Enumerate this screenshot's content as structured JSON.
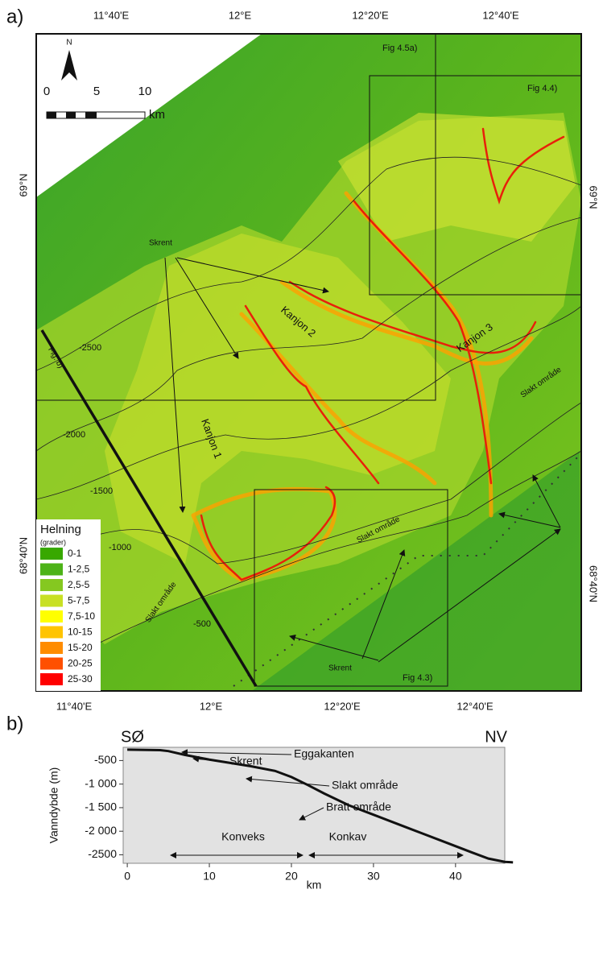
{
  "panel_labels": [
    "a)",
    "b)"
  ],
  "map": {
    "top_ticks": [
      "11°40'E",
      "12°E",
      "12°20'E",
      "12°40'E"
    ],
    "bottom_ticks": [
      "11°40'E",
      "12°E",
      "12°20'E",
      "12°40'E"
    ],
    "left_ticks": [
      "69°N",
      "68°40'N"
    ],
    "right_ticks": [
      "69°N",
      "68°40'N"
    ],
    "north": "N",
    "scale": {
      "labels": [
        "0",
        "5",
        "10"
      ],
      "unit": "km"
    },
    "frames": [
      "Fig 4.5a)",
      "Fig 4.4)",
      "Fig 4.3)",
      "Fig. b)"
    ],
    "labels": [
      "Skrent",
      "Skrent",
      "Kanjon 2",
      "Kanjon 3",
      "Kanjon 1",
      "Slakt område",
      "Slakt område",
      "Slakt område"
    ],
    "contours": [
      "-2500",
      "-2000",
      "-1500",
      "-1000",
      "-500"
    ],
    "legend": {
      "title": "Helning",
      "subtitle": "(grader)",
      "items": [
        {
          "label": "0-1",
          "color": "#38a800"
        },
        {
          "label": "1-2,5",
          "color": "#4db318"
        },
        {
          "label": "2,5-5",
          "color": "#85c820"
        },
        {
          "label": "5-7,5",
          "color": "#c8e024"
        },
        {
          "label": "7,5-10",
          "color": "#ffff00"
        },
        {
          "label": "10-15",
          "color": "#ffc400"
        },
        {
          "label": "15-20",
          "color": "#ff8c00"
        },
        {
          "label": "20-25",
          "color": "#ff5000"
        },
        {
          "label": "25-30",
          "color": "#ff0000"
        }
      ]
    }
  },
  "chart_data": {
    "type": "line",
    "corner_labels": [
      "SØ",
      "NV"
    ],
    "x_label": "km",
    "y_label": "Vanndybde (m)",
    "x": [
      0,
      4,
      5,
      7,
      10,
      15,
      18,
      20,
      22,
      24,
      27,
      30,
      33,
      36,
      39,
      42,
      44,
      46,
      47
    ],
    "series": [
      {
        "color": "#111111",
        "values": [
          -270,
          -280,
          -300,
          -380,
          -480,
          -620,
          -720,
          -850,
          -1020,
          -1200,
          -1450,
          -1650,
          -1850,
          -2050,
          -2250,
          -2450,
          -2580,
          -2650,
          -2660
        ]
      }
    ],
    "xlim": [
      -0.5,
      46
    ],
    "ylim": [
      -2680,
      -220
    ],
    "xticks": [
      0,
      10,
      20,
      30,
      40
    ],
    "yticks": [
      -500,
      {
        "value": -1000,
        "label": "-1 000"
      },
      {
        "value": -1500,
        "label": "-1 500"
      },
      {
        "value": -2000,
        "label": "-2 000"
      },
      -2500
    ],
    "annotations": [
      "Eggakanten",
      "Skrent",
      "Slakt område",
      "Bratt område",
      "Konveks",
      "Konkav"
    ],
    "background": "#e2e2e2"
  }
}
